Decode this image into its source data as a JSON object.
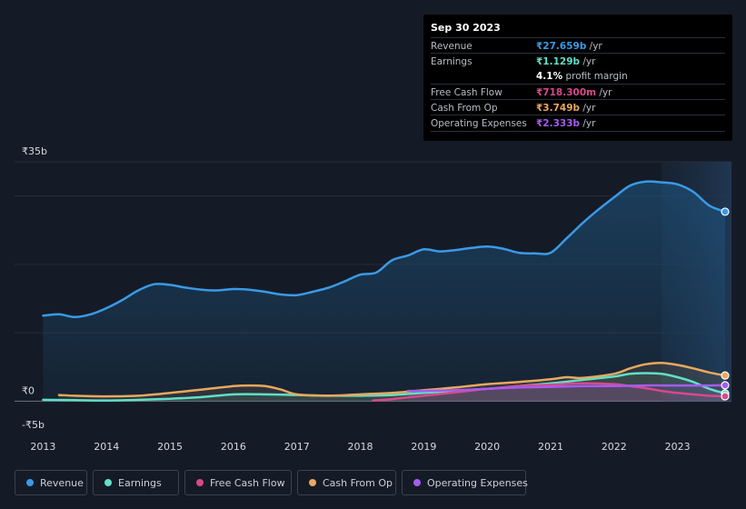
{
  "tooltip": {
    "date": "Sep 30 2023",
    "rows": [
      {
        "label": "Revenue",
        "value": "₹27.659b",
        "unit": " /yr",
        "color": "#3a9ae6"
      },
      {
        "label": "Earnings",
        "value": "₹1.129b",
        "unit": " /yr",
        "color": "#5fe0c8"
      },
      {
        "label": "",
        "value": "4.1%",
        "unit": " profit margin",
        "color": "#ffffff"
      },
      {
        "label": "Free Cash Flow",
        "value": "₹718.300m",
        "unit": " /yr",
        "color": "#d8498a"
      },
      {
        "label": "Cash From Op",
        "value": "₹3.749b",
        "unit": " /yr",
        "color": "#e8a85f"
      },
      {
        "label": "Operating Expenses",
        "value": "₹2.333b",
        "unit": " /yr",
        "color": "#a55cf0"
      }
    ]
  },
  "chart_data": {
    "type": "line",
    "y_tick_labels": [
      "₹35b",
      "₹0",
      "-₹5b"
    ],
    "ylim": [
      -5,
      35
    ],
    "x_tick_labels": [
      "2013",
      "2014",
      "2015",
      "2016",
      "2017",
      "2018",
      "2019",
      "2020",
      "2021",
      "2022",
      "2023"
    ],
    "x_ticks": [
      2013,
      2014,
      2015,
      2016,
      2017,
      2018,
      2019,
      2020,
      2021,
      2022,
      2023
    ],
    "xlim": [
      2012.55,
      2023.85
    ],
    "forecast_start": 2022.75,
    "series": [
      {
        "name": "Revenue",
        "color": "#3a9ae6",
        "x": [
          2013.0,
          2013.25,
          2013.5,
          2013.75,
          2014.0,
          2014.25,
          2014.5,
          2014.75,
          2015.0,
          2015.25,
          2015.5,
          2015.75,
          2016.0,
          2016.25,
          2016.5,
          2016.75,
          2017.0,
          2017.25,
          2017.5,
          2017.75,
          2018.0,
          2018.25,
          2018.5,
          2018.75,
          2019.0,
          2019.25,
          2019.5,
          2019.75,
          2020.0,
          2020.25,
          2020.5,
          2020.75,
          2021.0,
          2021.25,
          2021.5,
          2021.75,
          2022.0,
          2022.25,
          2022.5,
          2022.75,
          2023.0,
          2023.25,
          2023.5,
          2023.75
        ],
        "values": [
          12.5,
          12.7,
          12.3,
          12.7,
          13.6,
          14.8,
          16.2,
          17.1,
          17.0,
          16.6,
          16.3,
          16.2,
          16.4,
          16.3,
          16.0,
          15.6,
          15.5,
          16.0,
          16.6,
          17.5,
          18.5,
          18.8,
          20.6,
          21.3,
          22.2,
          21.9,
          22.1,
          22.4,
          22.6,
          22.3,
          21.7,
          21.6,
          21.7,
          23.8,
          26.0,
          28.0,
          29.8,
          31.5,
          32.1,
          32.0,
          31.7,
          30.6,
          28.6,
          27.7
        ]
      },
      {
        "name": "Earnings",
        "color": "#5fe0c8",
        "x": [
          2013.0,
          2013.5,
          2014.0,
          2014.5,
          2015.0,
          2015.5,
          2016.0,
          2016.5,
          2017.0,
          2017.5,
          2018.0,
          2018.5,
          2019.0,
          2019.5,
          2020.0,
          2020.5,
          2021.0,
          2021.5,
          2022.0,
          2022.25,
          2022.5,
          2022.75,
          2023.0,
          2023.25,
          2023.5,
          2023.75
        ],
        "values": [
          0.2,
          0.15,
          0.1,
          0.2,
          0.35,
          0.6,
          1.0,
          1.0,
          0.9,
          0.8,
          0.8,
          0.9,
          1.2,
          1.5,
          1.8,
          2.2,
          2.6,
          3.1,
          3.6,
          4.0,
          4.1,
          4.0,
          3.5,
          2.8,
          1.8,
          1.13
        ]
      },
      {
        "name": "Free Cash Flow",
        "color": "#d8498a",
        "x": [
          2018.2,
          2018.5,
          2019.0,
          2019.5,
          2020.0,
          2020.25,
          2020.5,
          2021.0,
          2021.5,
          2022.0,
          2022.25,
          2022.5,
          2022.75,
          2023.0,
          2023.25,
          2023.5,
          2023.75
        ],
        "values": [
          0.1,
          0.3,
          0.8,
          1.3,
          1.8,
          2.0,
          2.2,
          2.4,
          2.6,
          2.5,
          2.2,
          1.9,
          1.5,
          1.2,
          1.0,
          0.8,
          0.72
        ]
      },
      {
        "name": "Cash From Op",
        "color": "#e8a85f",
        "x": [
          2013.25,
          2013.5,
          2014.0,
          2014.5,
          2015.0,
          2015.5,
          2016.0,
          2016.25,
          2016.5,
          2016.75,
          2017.0,
          2017.5,
          2018.0,
          2018.5,
          2019.0,
          2019.5,
          2020.0,
          2020.5,
          2021.0,
          2021.25,
          2021.5,
          2022.0,
          2022.25,
          2022.5,
          2022.75,
          2023.0,
          2023.25,
          2023.5,
          2023.75
        ],
        "values": [
          0.9,
          0.8,
          0.7,
          0.8,
          1.2,
          1.7,
          2.2,
          2.3,
          2.2,
          1.7,
          1.0,
          0.8,
          1.0,
          1.2,
          1.6,
          2.0,
          2.5,
          2.8,
          3.2,
          3.5,
          3.4,
          4.0,
          4.8,
          5.4,
          5.6,
          5.3,
          4.8,
          4.2,
          3.75
        ]
      },
      {
        "name": "Operating Expenses",
        "color": "#a55cf0",
        "x": [
          2018.75,
          2019.0,
          2019.5,
          2020.0,
          2020.5,
          2021.0,
          2021.5,
          2022.0,
          2022.5,
          2022.75,
          2023.0,
          2023.5,
          2023.75
        ],
        "values": [
          1.5,
          1.5,
          1.6,
          1.8,
          2.0,
          2.1,
          2.2,
          2.2,
          2.3,
          2.3,
          2.3,
          2.3,
          2.33
        ]
      }
    ]
  },
  "legend": [
    {
      "label": "Revenue",
      "color": "#3a9ae6"
    },
    {
      "label": "Earnings",
      "color": "#5fe0c8"
    },
    {
      "label": "Free Cash Flow",
      "color": "#d8498a"
    },
    {
      "label": "Cash From Op",
      "color": "#e8a85f"
    },
    {
      "label": "Operating Expenses",
      "color": "#a55cf0"
    }
  ]
}
